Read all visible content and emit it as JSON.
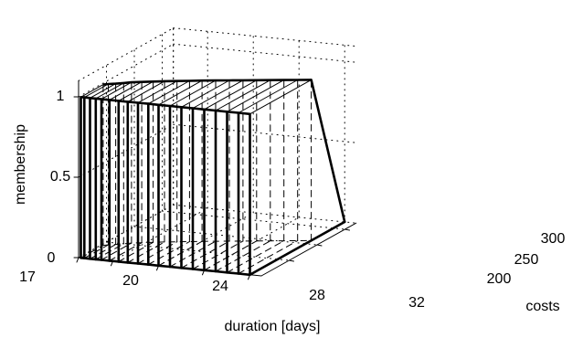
{
  "chart_data": {
    "type": "surface-3d",
    "title": "",
    "xlabel": "duration [days]",
    "ylabel": "costs",
    "zlabel": "membership",
    "x_ticks": [
      "17",
      "20",
      "24",
      "28",
      "32"
    ],
    "y_ticks": [
      "200",
      "250",
      "300"
    ],
    "z_ticks": [
      "0",
      "0.5",
      "1"
    ],
    "xlim": [
      17,
      33
    ],
    "ylim": [
      150,
      320
    ],
    "zlim": [
      0,
      1.1
    ],
    "grid": true,
    "surface": {
      "description_free": true,
      "x": [
        17.2,
        17.5,
        18,
        18.5,
        19,
        19.7,
        20.5,
        21.3,
        22.2,
        23.1,
        24,
        25,
        26,
        27,
        28,
        29,
        30,
        31,
        32
      ],
      "y_front": [
        150,
        150,
        150,
        150,
        150,
        150,
        150,
        150,
        150,
        150,
        150,
        150,
        150,
        150,
        150,
        150,
        150,
        150,
        150
      ],
      "y_back": [
        190,
        193,
        196,
        200,
        204,
        208,
        212,
        216,
        220,
        224,
        228,
        232,
        236,
        240,
        244,
        248,
        252,
        256,
        260
      ],
      "membership": [
        1,
        1,
        1,
        1,
        1,
        1,
        1,
        1,
        1,
        1,
        1,
        1,
        1,
        1,
        1,
        1,
        1,
        1,
        1
      ],
      "apex": {
        "x": 32,
        "y": 320,
        "z": 0
      }
    }
  }
}
